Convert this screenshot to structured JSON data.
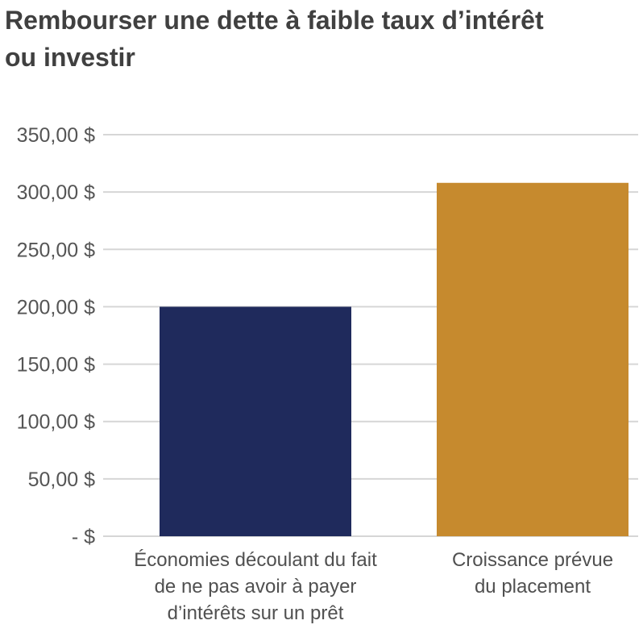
{
  "title_lines": [
    "Rembourser une dette à faible taux d’intérêt",
    "ou investir"
  ],
  "chart_data": {
    "type": "bar",
    "title": "Rembourser une dette à faible taux d’intérêt ou investir",
    "categories": [
      [
        "Économies découlant du fait",
        "de ne pas avoir à payer",
        "d’intérêts sur un prêt"
      ],
      [
        "Croissance prévue",
        "du placement"
      ]
    ],
    "values": [
      200,
      308
    ],
    "colors": [
      "#1f2a5c",
      "#c68a2e"
    ],
    "ylim": [
      0,
      350
    ],
    "ytick_values": [
      0,
      50,
      100,
      150,
      200,
      250,
      300,
      350
    ],
    "ytick_labels": [
      "- $",
      "50,00 $",
      "100,00 $",
      "150,00 $",
      "200,00 $",
      "250,00 $",
      "300,00 $",
      "350,00 $"
    ],
    "grid": true,
    "xlabel": "",
    "ylabel": ""
  }
}
